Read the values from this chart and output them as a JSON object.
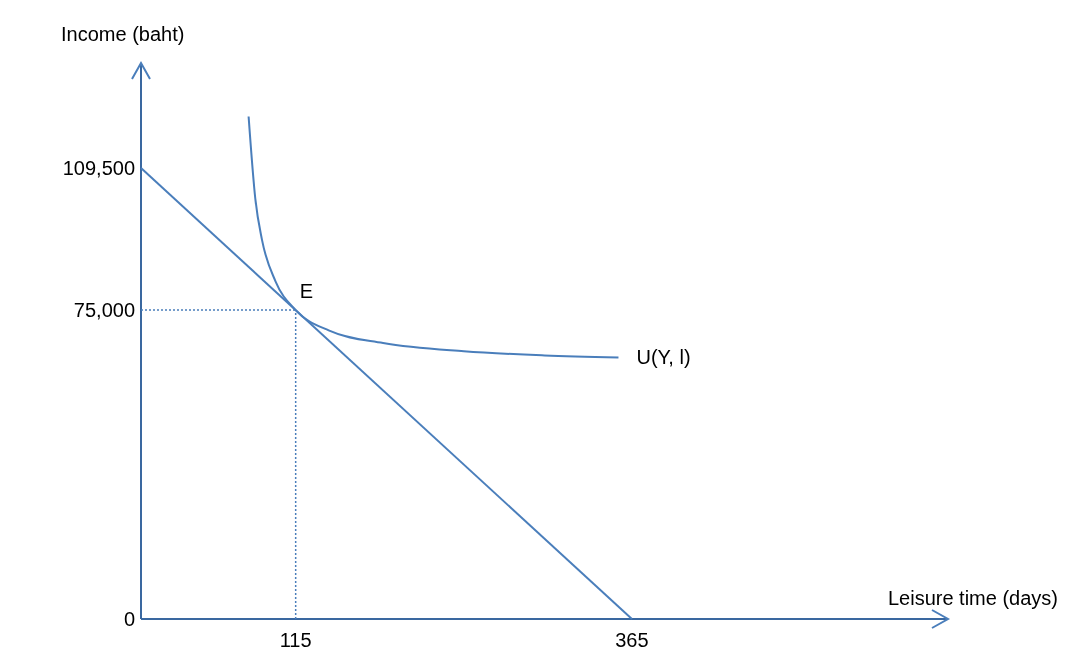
{
  "chart_data": {
    "type": "line",
    "xlabel": "Leisure time (days)",
    "ylabel": "Income (baht)",
    "xlim": [
      0,
      600
    ],
    "ylim": [
      0,
      135000
    ],
    "xticks": [
      {
        "value": 115,
        "label": "115"
      },
      {
        "value": 365,
        "label": "365"
      }
    ],
    "yticks": [
      {
        "value": 0,
        "label": "0"
      },
      {
        "value": 75000,
        "label": "75,000"
      },
      {
        "value": 109500,
        "label": "109,500"
      }
    ],
    "series": [
      {
        "color": "#4a7ebb",
        "x": [
          0,
          365
        ],
        "values": [
          109500,
          0
        ]
      },
      {
        "name": "U(Y, l)",
        "color": "#4a7ebb",
        "x": [
          80,
          85,
          90,
          100,
          115,
          140,
          180,
          240,
          300,
          355
        ],
        "values": [
          122000,
          102000,
          92000,
          82000,
          75000,
          70000,
          67000,
          65000,
          64000,
          63500
        ]
      }
    ],
    "ref_lines": [
      {
        "axis": "x",
        "value": 115,
        "color": "#4a7ebb",
        "line_style": "dotted"
      },
      {
        "axis": "y",
        "value": 75000,
        "color": "#4a7ebb",
        "line_style": "dotted"
      }
    ],
    "annotations": [
      {
        "text": "E",
        "x": 115,
        "y": 75000
      }
    ]
  }
}
